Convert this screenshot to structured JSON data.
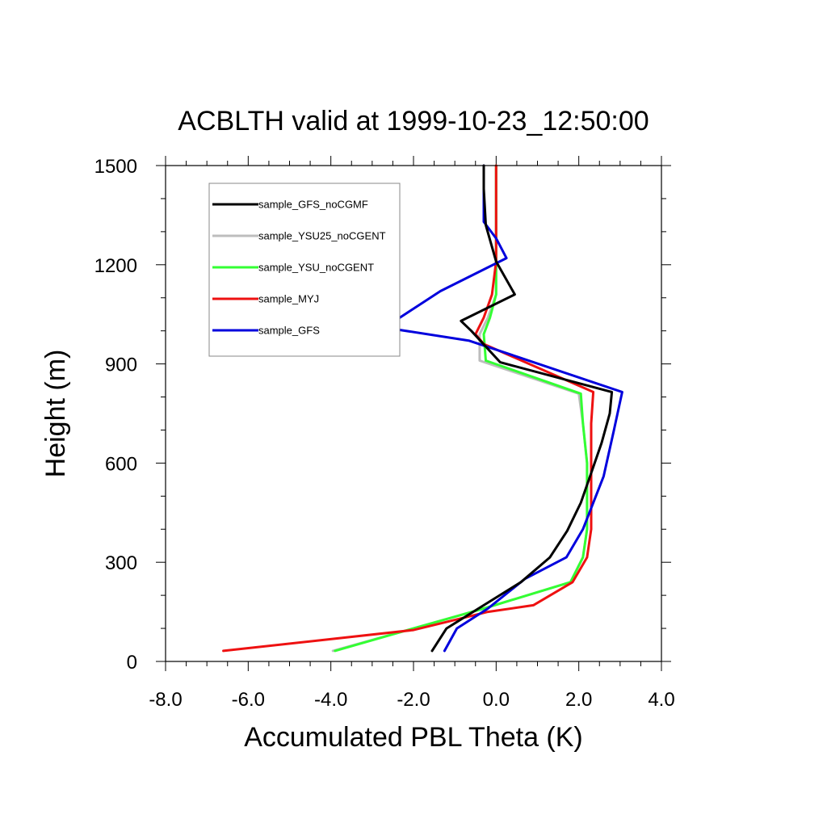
{
  "chart_data": {
    "type": "line",
    "title": "ACBLTH valid at 1999-10-23_12:50:00",
    "xlabel": "Accumulated PBL Theta (K)",
    "ylabel": "Height (m)",
    "xlim": [
      -8.0,
      4.0
    ],
    "ylim": [
      0,
      1500
    ],
    "xticks": [
      -8.0,
      -6.0,
      -4.0,
      -2.0,
      0.0,
      2.0,
      4.0
    ],
    "xtick_labels": [
      "-8.0",
      "-6.0",
      "-4.0",
      "-2.0",
      "0.0",
      "2.0",
      "4.0"
    ],
    "yticks": [
      0,
      300,
      600,
      900,
      1200,
      1500
    ],
    "ytick_labels": [
      "0",
      "300",
      "600",
      "900",
      "1200",
      "1500"
    ],
    "grid": false,
    "legend_position": "top-left",
    "series": [
      {
        "name": "sample_GFS_noCGMF",
        "color": "#000000",
        "points": [
          [
            -1.55,
            32
          ],
          [
            -1.2,
            100
          ],
          [
            -0.3,
            170
          ],
          [
            0.6,
            240
          ],
          [
            1.3,
            315
          ],
          [
            1.72,
            395
          ],
          [
            2.05,
            480
          ],
          [
            2.3,
            570
          ],
          [
            2.55,
            660
          ],
          [
            2.75,
            750
          ],
          [
            2.8,
            815
          ],
          [
            0.1,
            905
          ],
          [
            -0.6,
            1000
          ],
          [
            -0.85,
            1030
          ],
          [
            0.45,
            1110
          ],
          [
            0.0,
            1210
          ],
          [
            -0.25,
            1320
          ],
          [
            -0.3,
            1430
          ],
          [
            -0.3,
            1500
          ]
        ]
      },
      {
        "name": "sample_YSU25_noCGENT",
        "color": "#bdbdbd",
        "points": [
          [
            -3.95,
            32
          ],
          [
            -2.0,
            100
          ],
          [
            -0.3,
            160
          ],
          [
            1.8,
            240
          ],
          [
            2.1,
            315
          ],
          [
            2.2,
            400
          ],
          [
            2.2,
            500
          ],
          [
            2.2,
            600
          ],
          [
            2.1,
            720
          ],
          [
            2.0,
            810
          ],
          [
            -0.4,
            910
          ],
          [
            -0.4,
            990
          ],
          [
            -0.2,
            1040
          ],
          [
            0.0,
            1110
          ],
          [
            0.0,
            1210
          ],
          [
            0.0,
            1320
          ],
          [
            0.0,
            1500
          ]
        ]
      },
      {
        "name": "sample_YSU_noCGENT",
        "color": "#33ff33",
        "points": [
          [
            -3.9,
            32
          ],
          [
            -2.0,
            100
          ],
          [
            -0.3,
            160
          ],
          [
            1.8,
            240
          ],
          [
            2.1,
            315
          ],
          [
            2.2,
            400
          ],
          [
            2.2,
            500
          ],
          [
            2.2,
            600
          ],
          [
            2.1,
            720
          ],
          [
            2.05,
            810
          ],
          [
            -0.25,
            910
          ],
          [
            -0.3,
            990
          ],
          [
            -0.15,
            1040
          ],
          [
            0.0,
            1110
          ],
          [
            0.0,
            1210
          ],
          [
            0.0,
            1320
          ],
          [
            0.0,
            1500
          ]
        ]
      },
      {
        "name": "sample_MYJ",
        "color": "#ee1111",
        "points": [
          [
            -6.6,
            32
          ],
          [
            -2.0,
            95
          ],
          [
            -0.2,
            150
          ],
          [
            0.9,
            170
          ],
          [
            1.85,
            240
          ],
          [
            2.2,
            315
          ],
          [
            2.3,
            400
          ],
          [
            2.3,
            500
          ],
          [
            2.3,
            600
          ],
          [
            2.3,
            720
          ],
          [
            2.35,
            815
          ],
          [
            -0.3,
            960
          ],
          [
            -0.5,
            990
          ],
          [
            -0.3,
            1040
          ],
          [
            -0.1,
            1110
          ],
          [
            0.0,
            1210
          ],
          [
            0.0,
            1320
          ],
          [
            0.0,
            1500
          ]
        ]
      },
      {
        "name": "sample_GFS",
        "color": "#0000dd",
        "points": [
          [
            -1.25,
            32
          ],
          [
            -0.95,
            100
          ],
          [
            -0.2,
            160
          ],
          [
            0.7,
            250
          ],
          [
            1.7,
            315
          ],
          [
            2.1,
            400
          ],
          [
            2.6,
            560
          ],
          [
            2.85,
            700
          ],
          [
            3.05,
            815
          ],
          [
            0.55,
            920
          ],
          [
            -0.65,
            970
          ],
          [
            -2.7,
            1010
          ],
          [
            -1.35,
            1120
          ],
          [
            0.25,
            1220
          ],
          [
            0.0,
            1280
          ],
          [
            -0.3,
            1330
          ],
          [
            -0.3,
            1430
          ],
          [
            -0.3,
            1500
          ]
        ]
      }
    ]
  }
}
